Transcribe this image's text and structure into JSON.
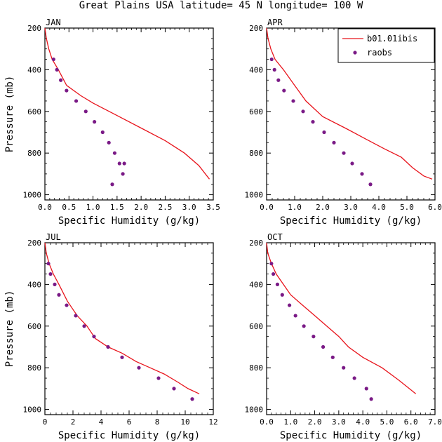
{
  "figure_title": "Great Plains USA  latitude= 45 N longitude= 100 W",
  "legend": {
    "model_label": "b01.01ibis",
    "obs_label": "raobs"
  },
  "colors": {
    "model": "#e8141c",
    "obs": "#7a1a86",
    "axes": "#000000"
  },
  "chart_data": [
    {
      "type": "line",
      "title": "JAN",
      "xlabel": "Specific Humidity (g/kg)",
      "ylabel": "Pressure (mb)",
      "xlim": [
        0,
        3.5
      ],
      "ylim": [
        1025,
        200
      ],
      "y_inverted": true,
      "xticks": [
        "0.0",
        "0.5",
        "1.0",
        "1.5",
        "2.0",
        "2.5",
        "3.0",
        "3.5"
      ],
      "yticks": [
        "200",
        "400",
        "600",
        "800",
        "1000"
      ],
      "series": [
        {
          "name": "b01.01ibis",
          "style": "line",
          "x": [
            0.0,
            0.03,
            0.08,
            0.15,
            0.28,
            0.45,
            0.75,
            1.0,
            1.5,
            2.0,
            2.5,
            2.9,
            3.2,
            3.42
          ],
          "y": [
            200,
            250,
            300,
            350,
            400,
            475,
            525,
            560,
            620,
            680,
            740,
            800,
            860,
            925
          ]
        },
        {
          "name": "raobs",
          "style": "markers",
          "x": [
            0.18,
            0.25,
            0.33,
            0.45,
            0.65,
            0.85,
            1.03,
            1.2,
            1.33,
            1.45,
            1.55,
            1.62,
            1.65,
            1.4
          ],
          "y": [
            350,
            400,
            450,
            500,
            550,
            600,
            650,
            700,
            750,
            800,
            850,
            900,
            850,
            950
          ]
        }
      ]
    },
    {
      "type": "line",
      "title": "APR",
      "xlabel": "Specific Humidity (g/kg)",
      "ylabel": "Pressure (mb)",
      "xlim": [
        0,
        6.0
      ],
      "ylim": [
        1025,
        200
      ],
      "y_inverted": true,
      "xticks": [
        "0.0",
        "1.0",
        "2.0",
        "3.0",
        "4.0",
        "5.0",
        "6.0"
      ],
      "yticks": [
        "200",
        "400",
        "600",
        "800",
        "1000"
      ],
      "series": [
        {
          "name": "b01.01ibis",
          "style": "line",
          "x": [
            0.0,
            0.05,
            0.15,
            0.3,
            0.6,
            1.0,
            1.4,
            2.0,
            2.8,
            3.5,
            4.2,
            4.8,
            5.2,
            5.6,
            5.9
          ],
          "y": [
            200,
            250,
            300,
            350,
            400,
            475,
            550,
            625,
            680,
            730,
            780,
            820,
            870,
            910,
            925
          ]
        },
        {
          "name": "raobs",
          "style": "markers",
          "x": [
            0.18,
            0.28,
            0.42,
            0.62,
            0.95,
            1.3,
            1.65,
            2.05,
            2.4,
            2.75,
            3.05,
            3.4,
            3.7
          ],
          "y": [
            350,
            400,
            450,
            500,
            550,
            600,
            650,
            700,
            750,
            800,
            850,
            900,
            950
          ]
        }
      ]
    },
    {
      "type": "line",
      "title": "JUL",
      "xlabel": "Specific Humidity (g/kg)",
      "ylabel": "Pressure (mb)",
      "xlim": [
        0,
        12
      ],
      "ylim": [
        1025,
        200
      ],
      "y_inverted": true,
      "xticks": [
        "0",
        "2",
        "4",
        "6",
        "8",
        "10",
        "12"
      ],
      "yticks": [
        "200",
        "400",
        "600",
        "800",
        "1000"
      ],
      "series": [
        {
          "name": "b01.01ibis",
          "style": "line",
          "x": [
            0.0,
            0.1,
            0.3,
            0.6,
            1.0,
            1.6,
            2.3,
            3.0,
            3.6,
            4.5,
            5.5,
            6.5,
            7.5,
            8.5,
            9.5,
            10.2,
            11.0
          ],
          "y": [
            200,
            250,
            300,
            350,
            400,
            480,
            550,
            600,
            660,
            700,
            730,
            770,
            800,
            830,
            870,
            900,
            925
          ]
        },
        {
          "name": "raobs",
          "style": "markers",
          "x": [
            0.25,
            0.4,
            0.7,
            1.0,
            1.55,
            2.2,
            2.8,
            3.5,
            4.5,
            5.5,
            6.7,
            8.1,
            9.2,
            10.5
          ],
          "y": [
            300,
            350,
            400,
            450,
            500,
            550,
            600,
            650,
            700,
            750,
            800,
            850,
            900,
            950
          ]
        }
      ]
    },
    {
      "type": "line",
      "title": "OCT",
      "xlabel": "Specific Humidity (g/kg)",
      "ylabel": "Pressure (mb)",
      "xlim": [
        0,
        7.0
      ],
      "ylim": [
        1025,
        200
      ],
      "y_inverted": true,
      "xticks": [
        "0.0",
        "1.0",
        "2.0",
        "3.0",
        "4.0",
        "5.0",
        "6.0",
        "7.0"
      ],
      "yticks": [
        "200",
        "400",
        "600",
        "800",
        "1000"
      ],
      "series": [
        {
          "name": "b01.01ibis",
          "style": "line",
          "x": [
            0.0,
            0.05,
            0.2,
            0.4,
            0.7,
            1.0,
            1.5,
            2.0,
            2.5,
            3.0,
            3.4,
            4.0,
            4.8,
            5.5,
            6.2
          ],
          "y": [
            200,
            250,
            300,
            350,
            400,
            450,
            500,
            550,
            600,
            650,
            700,
            750,
            800,
            860,
            925
          ]
        },
        {
          "name": "raobs",
          "style": "markers",
          "x": [
            0.2,
            0.28,
            0.45,
            0.65,
            0.95,
            1.2,
            1.55,
            1.95,
            2.35,
            2.75,
            3.2,
            3.65,
            4.15,
            4.35
          ],
          "y": [
            300,
            350,
            400,
            450,
            500,
            550,
            600,
            650,
            700,
            750,
            800,
            850,
            900,
            950
          ]
        }
      ]
    }
  ]
}
